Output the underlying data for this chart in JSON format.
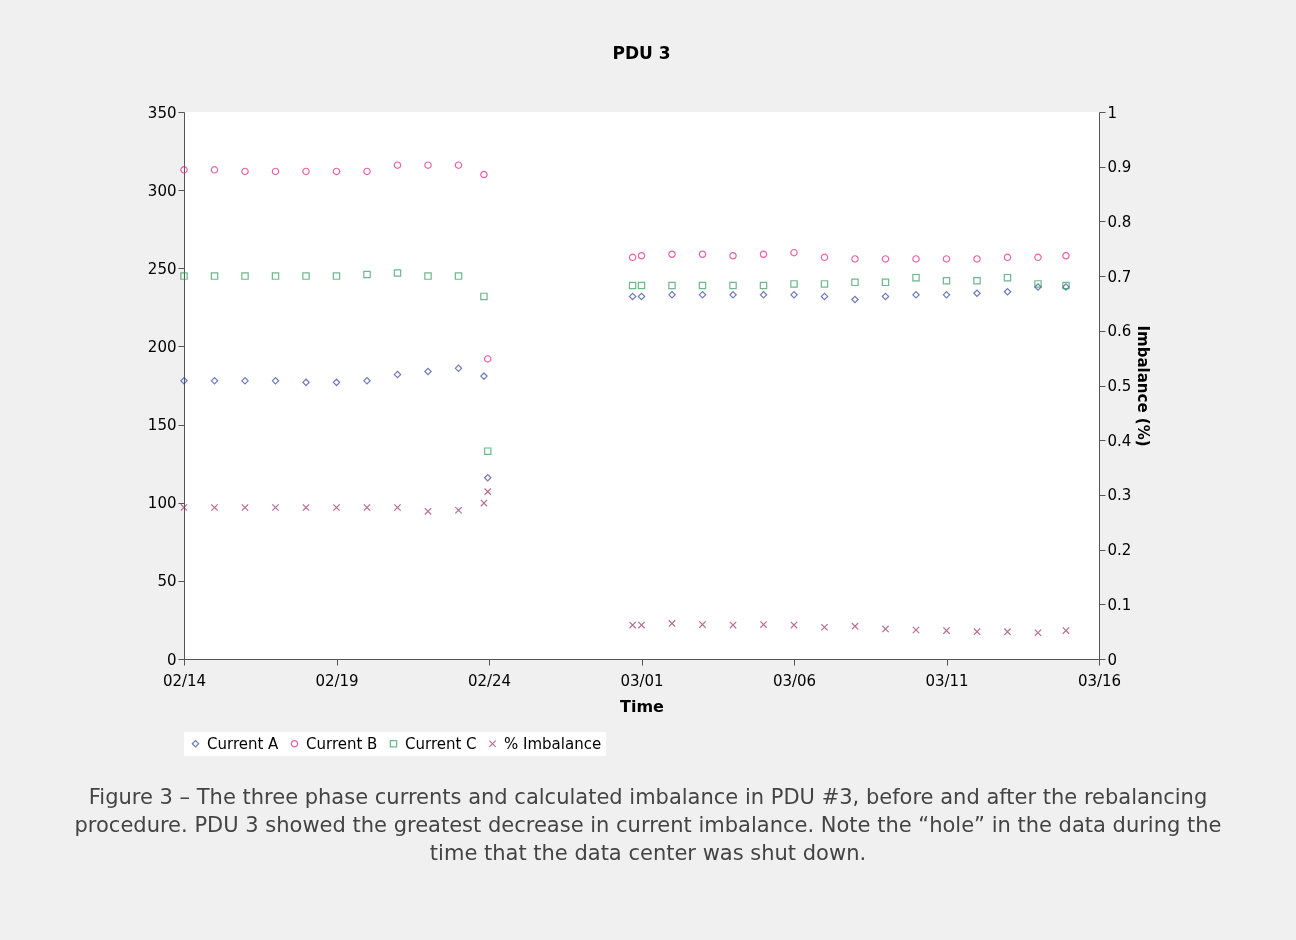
{
  "chart_data": {
    "type": "scatter",
    "title": "PDU 3",
    "xlabel": "Time",
    "y2label": "Imbalance (%)",
    "x": [
      "--02-14",
      "--02-15",
      "--02-16",
      "--02-17",
      "--02-18",
      "--02-19",
      "--02-20",
      "--02-21",
      "--02-22",
      "--02-23",
      "--02-23T20:00",
      "--02-23T23:00",
      "--02-28T17:00",
      "--03-01",
      "--03-02",
      "--03-03",
      "--03-04",
      "--03-05",
      "--03-06",
      "--03-07",
      "--03-08",
      "--03-09",
      "--03-10",
      "--03-11",
      "--03-12",
      "--03-13",
      "--03-14",
      "--03-14T22:00"
    ],
    "series": [
      {
        "name": "Current A",
        "color": "#33409c",
        "marker": "diamond",
        "values": [
          178,
          178,
          178,
          178,
          177,
          177,
          178,
          182,
          184,
          186,
          181,
          116,
          232,
          232,
          233,
          233,
          233,
          233,
          233,
          232,
          230,
          232,
          233,
          233,
          234,
          235,
          238,
          238
        ]
      },
      {
        "name": "Current B",
        "color": "#e0207f",
        "marker": "circle",
        "values": [
          313,
          313,
          312,
          312,
          312,
          312,
          312,
          316,
          316,
          316,
          310,
          192,
          257,
          258,
          259,
          259,
          258,
          259,
          260,
          257,
          256,
          256,
          256,
          256,
          256,
          257,
          257,
          258
        ]
      },
      {
        "name": "Current C",
        "color": "#2e9a5e",
        "marker": "square",
        "values": [
          245,
          245,
          245,
          245,
          245,
          245,
          246,
          247,
          245,
          245,
          232,
          133,
          239,
          239,
          239,
          239,
          239,
          239,
          240,
          240,
          241,
          241,
          244,
          242,
          242,
          244,
          240,
          239
        ]
      },
      {
        "name": "% Imbalance",
        "color": "#9b2f63",
        "marker": "cross",
        "axis": "y2",
        "values": [
          0.277,
          0.277,
          0.277,
          0.277,
          0.277,
          0.277,
          0.277,
          0.277,
          0.27,
          0.272,
          0.285,
          0.306,
          0.062,
          0.062,
          0.065,
          0.063,
          0.062,
          0.063,
          0.062,
          0.058,
          0.06,
          0.055,
          0.053,
          0.052,
          0.05,
          0.05,
          0.048,
          0.052
        ]
      }
    ],
    "xlim": [
      "--02-14",
      "--03-16"
    ],
    "xticks": [
      {
        "value": "--02-14",
        "label": "02/14"
      },
      {
        "value": "--02-19",
        "label": "02/19"
      },
      {
        "value": "--02-24",
        "label": "02/24"
      },
      {
        "value": "--03-01",
        "label": "03/01"
      },
      {
        "value": "--03-06",
        "label": "03/06"
      },
      {
        "value": "--03-11",
        "label": "03/11"
      },
      {
        "value": "--03-16",
        "label": "03/16"
      }
    ],
    "ylim": [
      0,
      350
    ],
    "yticks": [
      0,
      50,
      100,
      150,
      200,
      250,
      300,
      350
    ],
    "y2lim": [
      0,
      1
    ],
    "y2ticks": [
      0,
      0.1,
      0.2,
      0.3,
      0.4,
      0.5,
      0.6,
      0.7,
      0.8,
      0.9,
      1
    ],
    "legend": "bottom",
    "annotations": [
      "Figure 3 – The three phase currents and calculated imbalance in PDU #3, before and after the rebalancing procedure. PDU 3 showed the greatest decrease in current imbalance. Note the “hole” in the data during the time that the data center was shut down."
    ]
  }
}
